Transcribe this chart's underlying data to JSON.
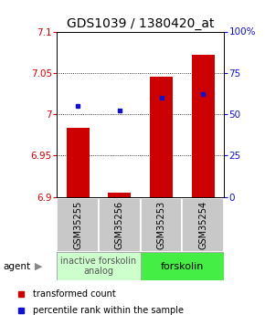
{
  "title": "GDS1039 / 1380420_at",
  "samples": [
    "GSM35255",
    "GSM35256",
    "GSM35253",
    "GSM35254"
  ],
  "red_values": [
    6.984,
    6.905,
    7.045,
    7.072
  ],
  "blue_values_pct": [
    55,
    52,
    60,
    62
  ],
  "ylim_left": [
    6.9,
    7.1
  ],
  "ylim_right": [
    0,
    100
  ],
  "yticks_left": [
    6.9,
    6.95,
    7.0,
    7.05,
    7.1
  ],
  "ytick_labels_left": [
    "6.9",
    "6.95",
    "7",
    "7.05",
    "7.1"
  ],
  "yticks_right": [
    0,
    25,
    50,
    75,
    100
  ],
  "ytick_labels_right": [
    "0",
    "25",
    "50",
    "75",
    "100%"
  ],
  "hlines": [
    6.95,
    7.0,
    7.05
  ],
  "bar_width": 0.55,
  "red_color": "#cc0000",
  "blue_color": "#1111cc",
  "group1_label": "inactive forskolin\nanalog",
  "group2_label": "forskolin",
  "group1_indices": [
    0,
    1
  ],
  "group2_indices": [
    2,
    3
  ],
  "group1_color": "#ccffcc",
  "group2_color": "#44ee44",
  "agent_label": "agent",
  "legend_red": "transformed count",
  "legend_blue": "percentile rank within the sample",
  "title_fontsize": 10,
  "tick_fontsize": 7.5,
  "sample_fontsize": 7,
  "group_fontsize": 7,
  "legend_fontsize": 7
}
